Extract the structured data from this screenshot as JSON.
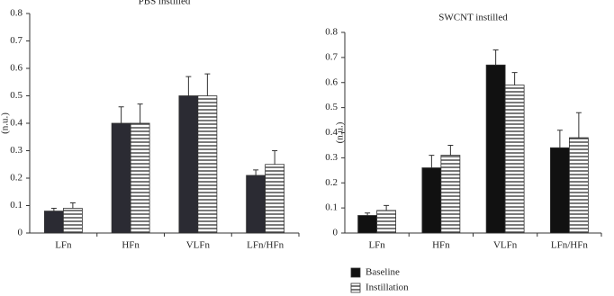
{
  "chart_data": [
    {
      "type": "bar",
      "title": "PBS instilled",
      "y_label": "(n.u.)",
      "categories": [
        "LFn",
        "HFn",
        "VLFn",
        "LFn/HFn"
      ],
      "series": [
        {
          "color": "#2b2b33",
          "values": [
            0.08,
            0.4,
            0.5,
            0.21
          ],
          "errors": [
            0.01,
            0.06,
            0.07,
            0.02
          ]
        },
        {
          "color": "#ffffff",
          "pattern": "horizontal-stripes",
          "values": [
            0.09,
            0.4,
            0.5,
            0.25
          ],
          "errors": [
            0.02,
            0.07,
            0.08,
            0.05
          ]
        }
      ],
      "ylim": [
        0,
        0.8
      ],
      "yticks": [
        0,
        0.1,
        0.2,
        0.3,
        0.4,
        0.5,
        0.6,
        0.7,
        0.8
      ]
    },
    {
      "type": "bar",
      "title": "SWCNT instilled",
      "y_label": "(n.u.)",
      "categories": [
        "LFn",
        "HFn",
        "VLFn",
        "LFn/HFn"
      ],
      "series": [
        {
          "name": "Baseline",
          "color": "#111111",
          "values": [
            0.07,
            0.26,
            0.67,
            0.34
          ],
          "errors": [
            0.01,
            0.05,
            0.06,
            0.07
          ]
        },
        {
          "name": "Instillation",
          "color": "#ffffff",
          "pattern": "horizontal-stripes",
          "values": [
            0.09,
            0.31,
            0.59,
            0.38
          ],
          "errors": [
            0.02,
            0.04,
            0.05,
            0.1
          ]
        }
      ],
      "ylim": [
        0,
        0.8
      ],
      "yticks": [
        0,
        0.1,
        0.2,
        0.3,
        0.4,
        0.5,
        0.6,
        0.7,
        0.8
      ]
    }
  ]
}
